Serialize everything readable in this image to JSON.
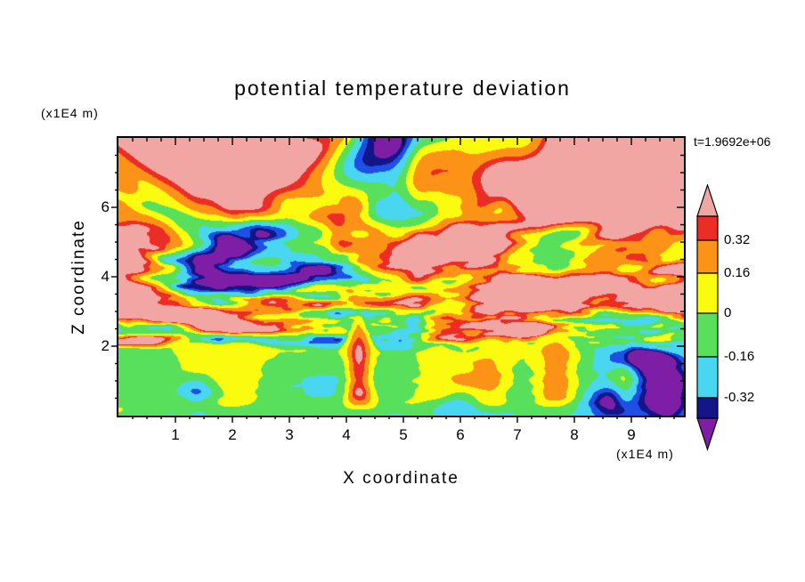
{
  "chart_data": {
    "type": "heatmap",
    "title": "potential temperature deviation",
    "annotation": "t=1.9692e+06",
    "xlabel": "X coordinate",
    "ylabel": "Z coordinate",
    "x_unit_label": "(x1E4 m)",
    "z_unit_label": "(x1E4 m)",
    "xlim": [
      0,
      9.9
    ],
    "zlim": [
      0,
      8
    ],
    "x_ticks": [
      1,
      2,
      3,
      4,
      5,
      6,
      7,
      8,
      9
    ],
    "z_ticks": [
      2,
      4,
      6
    ],
    "grid": false,
    "legend_position": "colorbar-right",
    "contour_levels": [
      -0.32,
      -0.16,
      0,
      0.16,
      0.32
    ],
    "colorbar": {
      "labels": [
        "0.32",
        "0.16",
        "0",
        "-0.16",
        "-0.32"
      ],
      "segment_colors_top_to_bottom": [
        "#ec2d25",
        "#fd9316",
        "#fbfb10",
        "#58e05c",
        "#49d6f0",
        "#141687"
      ],
      "arrow_top_color": "#f2a6a4",
      "arrow_bottom_color": "#7e1ea6"
    },
    "palette": {
      "bands": [
        {
          "max": -0.5,
          "name": "purple",
          "color": "#7e1ea6"
        },
        {
          "max": -0.42,
          "name": "navy",
          "color": "#141687"
        },
        {
          "max": -0.32,
          "name": "blue",
          "color": "#1e4fe6"
        },
        {
          "max": -0.16,
          "name": "cyan",
          "color": "#49d6f0"
        },
        {
          "max": 0,
          "name": "green",
          "color": "#58e05c"
        },
        {
          "max": 0.16,
          "name": "yellow",
          "color": "#fbfb10"
        },
        {
          "max": 0.32,
          "name": "orange",
          "color": "#fd9316"
        },
        {
          "max": 0.42,
          "name": "red",
          "color": "#ec2d25"
        },
        {
          "max": 99,
          "name": "pink",
          "color": "#f2a6a4"
        }
      ]
    }
  }
}
